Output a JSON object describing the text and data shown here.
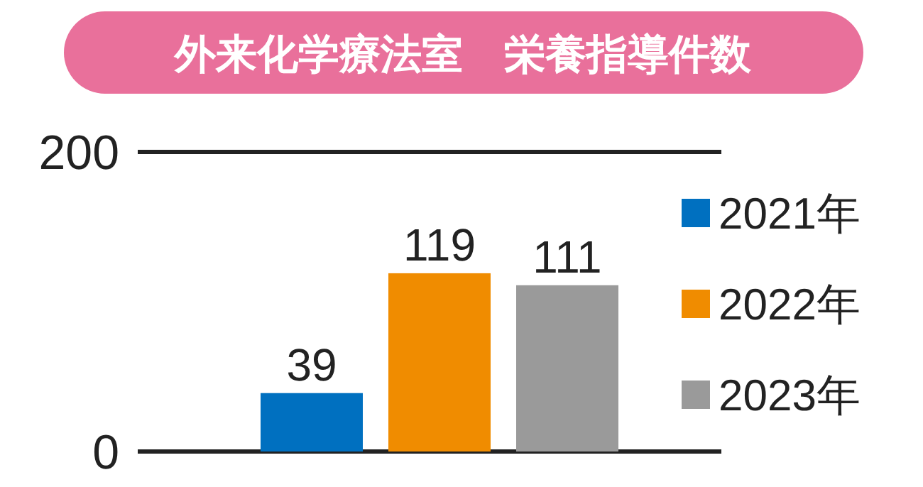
{
  "chart_data": {
    "type": "bar",
    "title": "外来化学療法室　栄養指導件数",
    "categories": [
      null
    ],
    "series": [
      {
        "name": "2021年",
        "color": "#0070c0",
        "values": [
          39
        ]
      },
      {
        "name": "2022年",
        "color": "#f08c00",
        "values": [
          119
        ]
      },
      {
        "name": "2023年",
        "color": "#9a9a9a",
        "values": [
          111
        ]
      }
    ],
    "ylim": [
      0,
      200
    ],
    "yticks": [
      0,
      200
    ],
    "grid": "y",
    "data_labels": true,
    "legend": "right"
  }
}
